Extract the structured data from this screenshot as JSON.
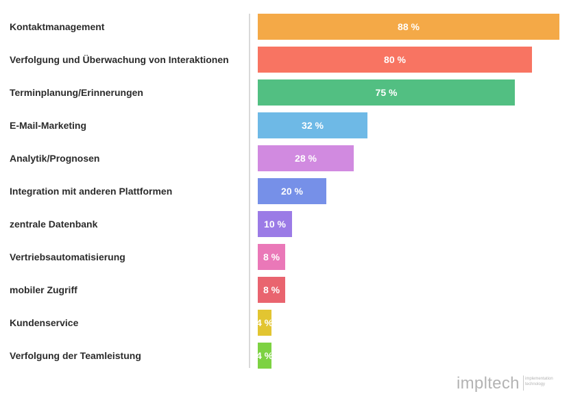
{
  "chart_data": {
    "type": "bar",
    "orientation": "horizontal",
    "categories": [
      "Kontaktmanagement",
      "Verfolgung und Überwachung von Interaktionen",
      "Terminplanung/Erinnerungen",
      "E-Mail-Marketing",
      "Analytik/Prognosen",
      "Integration mit anderen Plattformen",
      "zentrale Datenbank",
      "Vertriebsautomatisierung",
      "mobiler Zugriff",
      "Kundenservice",
      "Verfolgung der Teamleistung"
    ],
    "values": [
      88,
      80,
      75,
      32,
      28,
      20,
      10,
      8,
      8,
      4,
      4
    ],
    "value_labels": [
      "88 %",
      "80 %",
      "75 %",
      "32 %",
      "28 %",
      "20 %",
      "10 %",
      "8 %",
      "8 %",
      "4 %",
      "4 %"
    ],
    "colors": [
      "#f4a947",
      "#f87462",
      "#52bf82",
      "#6eb9e6",
      "#d18ae0",
      "#7690e8",
      "#9b7be6",
      "#ea78b8",
      "#e9646f",
      "#e2c531",
      "#7dd242"
    ],
    "title": "",
    "xlabel": "",
    "ylabel": "",
    "xlim": [
      0,
      88
    ],
    "grid": false,
    "legend": "none"
  },
  "colors": {
    "label_text": "#2b2b2b",
    "value_text": "#ffffff",
    "divider": "#d9d9d9",
    "logo": "#b3b3b3"
  },
  "logo": {
    "word": "impltech",
    "tagline_1": "implementation",
    "tagline_2": "technology"
  }
}
